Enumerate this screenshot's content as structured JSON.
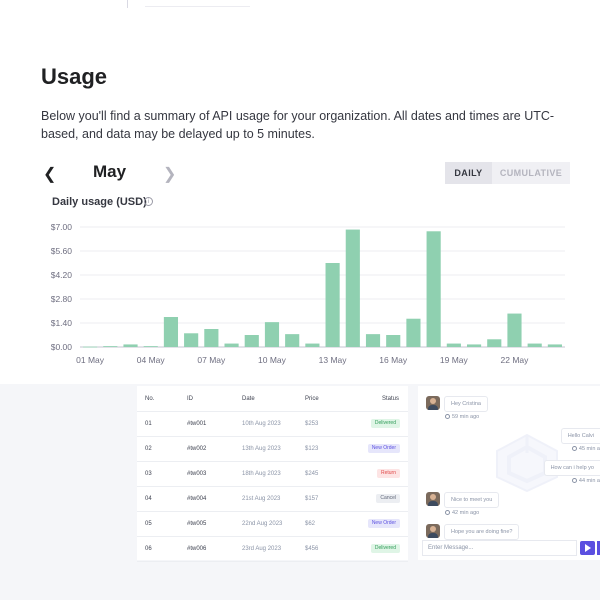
{
  "page": {
    "title": "Usage",
    "description": "Below you'll find a summary of API usage for your organization. All dates and times are UTC-based, and data may be delayed up to 5 minutes."
  },
  "month_nav": {
    "month": "May"
  },
  "view_toggle": {
    "daily": "DAILY",
    "cumulative": "CUMULATIVE",
    "selected": "DAILY"
  },
  "chart_data": {
    "type": "bar",
    "title": "Daily usage (USD)",
    "xlabel": "",
    "ylabel": "",
    "ylim": [
      0,
      7.0
    ],
    "y_ticks": [
      "$0.00",
      "$1.40",
      "$2.80",
      "$4.20",
      "$5.60",
      "$7.00"
    ],
    "x_ticks": [
      "01 May",
      "04 May",
      "07 May",
      "10 May",
      "13 May",
      "16 May",
      "19 May",
      "22 May"
    ],
    "categories": [
      "01 May",
      "02 May",
      "03 May",
      "04 May",
      "05 May",
      "06 May",
      "07 May",
      "08 May",
      "09 May",
      "10 May",
      "11 May",
      "12 May",
      "13 May",
      "14 May",
      "15 May",
      "16 May",
      "17 May",
      "18 May",
      "19 May",
      "20 May",
      "21 May",
      "22 May",
      "23 May",
      "24 May"
    ],
    "values": [
      0.02,
      0.05,
      0.15,
      0.05,
      1.75,
      0.8,
      1.05,
      0.2,
      0.7,
      1.45,
      0.75,
      0.2,
      4.9,
      6.85,
      0.75,
      0.7,
      1.65,
      6.75,
      0.2,
      0.15,
      0.45,
      1.95,
      0.2,
      0.15
    ],
    "grid": true,
    "bar_color": "#8fd0b0"
  },
  "table": {
    "headers": [
      "No.",
      "ID",
      "Date",
      "Price",
      "Status"
    ],
    "rows": [
      {
        "no": "01",
        "id": "#tw001",
        "date": "10th Aug 2023",
        "price": "$253",
        "status": "Delivered",
        "status_key": "delivered"
      },
      {
        "no": "02",
        "id": "#tw002",
        "date": "13th Aug 2023",
        "price": "$123",
        "status": "New Order",
        "status_key": "new"
      },
      {
        "no": "03",
        "id": "#tw003",
        "date": "18th Aug 2023",
        "price": "$245",
        "status": "Return",
        "status_key": "return"
      },
      {
        "no": "04",
        "id": "#tw004",
        "date": "21st Aug 2023",
        "price": "$157",
        "status": "Cancel",
        "status_key": "cancel"
      },
      {
        "no": "05",
        "id": "#tw005",
        "date": "22nd Aug 2023",
        "price": "$62",
        "status": "New Order",
        "status_key": "new"
      },
      {
        "no": "06",
        "id": "#tw006",
        "date": "23rd Aug 2023",
        "price": "$456",
        "status": "Delivered",
        "status_key": "delivered"
      }
    ],
    "status_colors": {
      "delivered": {
        "bg": "#dff5e6",
        "fg": "#2e9b57"
      },
      "new": {
        "bg": "#e6e6fb",
        "fg": "#5b4fe0"
      },
      "return": {
        "bg": "#fde4e4",
        "fg": "#e04b4b"
      },
      "cancel": {
        "bg": "#eceef2",
        "fg": "#5f6678"
      }
    }
  },
  "chat": {
    "messages": [
      {
        "text": "Hey Cristina",
        "time": "59 min ago",
        "side": "left"
      },
      {
        "text": "Hello Calvi",
        "time": "45 min a",
        "side": "right"
      },
      {
        "text": "How can i help yo",
        "time": "44 min a",
        "side": "right"
      },
      {
        "text": "Nice to meet you",
        "time": "42 min ago",
        "side": "left"
      },
      {
        "text": "Hope you are doing fine?",
        "time": "",
        "side": "left"
      }
    ],
    "input_placeholder": "Enter Message..."
  }
}
